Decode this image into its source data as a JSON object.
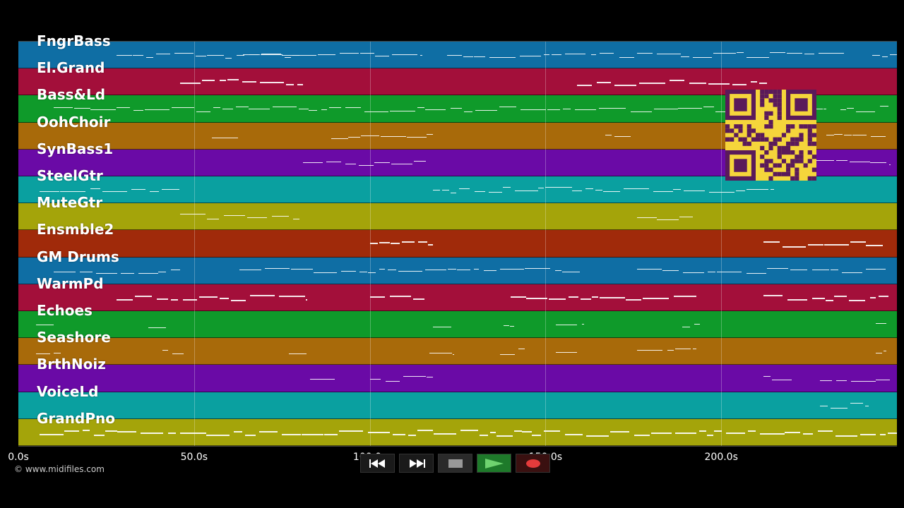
{
  "app": {
    "copyright": "© www.midifiles.com"
  },
  "tracks": [
    {
      "name": "FngrBass",
      "color": "#0f6ea4"
    },
    {
      "name": "El.Grand",
      "color": "#a30f3a"
    },
    {
      "name": "Bass&Ld",
      "color": "#0f9a2a"
    },
    {
      "name": "OohChoir",
      "color": "#a86a0a"
    },
    {
      "name": "SynBass1",
      "color": "#6a0aa6"
    },
    {
      "name": "SteelGtr",
      "color": "#0aa0a0"
    },
    {
      "name": "MuteGtr",
      "color": "#a4a40a"
    },
    {
      "name": "Ensmble2",
      "color": "#a02a0a"
    },
    {
      "name": "GM Drums",
      "color": "#0f6ea4"
    },
    {
      "name": "WarmPd",
      "color": "#a30f3a"
    },
    {
      "name": "Echoes",
      "color": "#0f9a2a"
    },
    {
      "name": "Seashore",
      "color": "#a86a0a"
    },
    {
      "name": "BrthNoiz",
      "color": "#6a0aa6"
    },
    {
      "name": "VoiceLd",
      "color": "#0aa0a0"
    },
    {
      "name": "GrandPno",
      "color": "#a4a40a"
    }
  ],
  "timeline": {
    "max_seconds": 250,
    "ticks": [
      {
        "t": 0,
        "label": "0.0s"
      },
      {
        "t": 50,
        "label": "50.0s"
      },
      {
        "t": 100,
        "label": "100.0s"
      },
      {
        "t": 150,
        "label": "150.0s"
      },
      {
        "t": 200,
        "label": "200.0s"
      }
    ]
  },
  "transport": [
    {
      "name": "rewind-button",
      "icon": "rewind-icon"
    },
    {
      "name": "fast-forward-button",
      "icon": "fast-forward-icon"
    },
    {
      "name": "stop-button",
      "icon": "stop-icon"
    },
    {
      "name": "play-button",
      "icon": "play-icon"
    },
    {
      "name": "record-button",
      "icon": "record-icon"
    }
  ],
  "colors": {
    "playhead_accent": "#ffffff",
    "qr_background": "#f5d53b",
    "qr_foreground": "#5a1a5a"
  }
}
